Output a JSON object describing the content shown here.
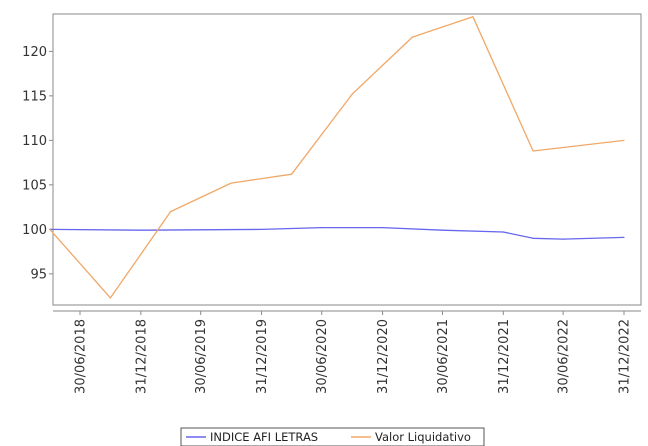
{
  "chart_data": {
    "type": "line",
    "title": "",
    "xlabel": "",
    "ylabel": "",
    "categories": [
      "30/06/2018",
      "31/12/2018",
      "30/06/2019",
      "31/12/2019",
      "30/06/2020",
      "31/12/2020",
      "30/06/2021",
      "31/12/2021",
      "30/06/2022",
      "31/12/2022"
    ],
    "x": [
      "2018-06-30",
      "2018-12-31",
      "2019-06-30",
      "2019-12-31",
      "2020-06-30",
      "2020-12-31",
      "2021-06-30",
      "2021-12-31",
      "2022-06-30",
      "2022-12-31"
    ],
    "ylim": [
      91.5,
      124.2
    ],
    "yticks": [
      95,
      100,
      105,
      110,
      115,
      120
    ],
    "grid": false,
    "legend_position": "bottom",
    "series": [
      {
        "name": "INDICE AFI LETRAS",
        "color": "#6666ee",
        "points": [
          {
            "x": "2018-03-31",
            "y": 100.0
          },
          {
            "x": "2018-12-31",
            "y": 99.9
          },
          {
            "x": "2019-12-31",
            "y": 100.0
          },
          {
            "x": "2020-06-30",
            "y": 100.2
          },
          {
            "x": "2020-12-31",
            "y": 100.2
          },
          {
            "x": "2021-06-30",
            "y": 99.9
          },
          {
            "x": "2021-12-31",
            "y": 99.7
          },
          {
            "x": "2022-03-31",
            "y": 99.0
          },
          {
            "x": "2022-06-30",
            "y": 98.9
          },
          {
            "x": "2022-12-31",
            "y": 99.1
          }
        ]
      },
      {
        "name": "Valor Liquidativo",
        "color": "#f0a868",
        "points": [
          {
            "x": "2018-03-31",
            "y": 100.0
          },
          {
            "x": "2018-09-30",
            "y": 92.3
          },
          {
            "x": "2019-03-31",
            "y": 102.0
          },
          {
            "x": "2019-09-30",
            "y": 105.2
          },
          {
            "x": "2020-03-31",
            "y": 106.2
          },
          {
            "x": "2020-09-30",
            "y": 115.2
          },
          {
            "x": "2021-03-31",
            "y": 121.6
          },
          {
            "x": "2021-09-30",
            "y": 123.9
          },
          {
            "x": "2022-03-31",
            "y": 108.8
          },
          {
            "x": "2022-12-31",
            "y": 110.0
          }
        ]
      }
    ]
  }
}
